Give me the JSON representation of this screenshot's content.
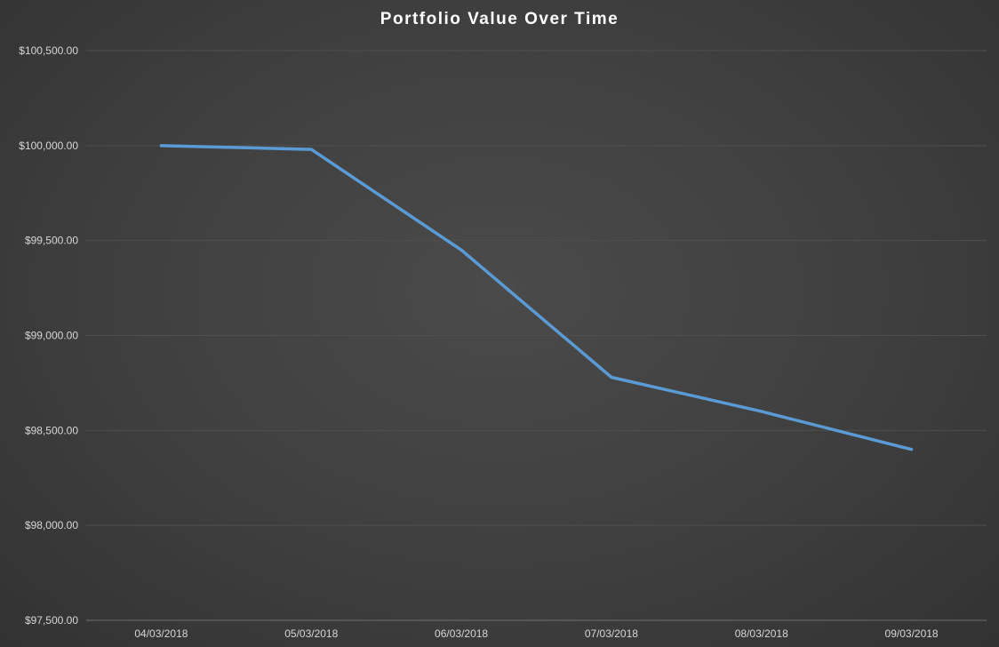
{
  "chart_data": {
    "type": "line",
    "title": "Portfolio Value Over Time",
    "categories": [
      "04/03/2018",
      "05/03/2018",
      "06/03/2018",
      "07/03/2018",
      "08/03/2018",
      "09/03/2018"
    ],
    "series": [
      {
        "name": "Portfolio Value",
        "values": [
          100000,
          99980,
          99450,
          98780,
          98600,
          98400
        ]
      }
    ],
    "xlabel": "",
    "ylabel": "",
    "ylim": [
      97500,
      100500
    ],
    "ytick_step": 500,
    "ytick_labels": [
      "$97,500.00",
      "$98,000.00",
      "$98,500.00",
      "$99,000.00",
      "$99,500.00",
      "$100,000.00",
      "$100,500.00"
    ],
    "grid": true,
    "legend": "none",
    "colors": {
      "line": "#5b9bd5",
      "gridline": "#4f4f4f",
      "axis_line": "#6e6e6e",
      "text": "#d6d6d6",
      "title": "#ffffff",
      "background": "#3f3f3f"
    }
  }
}
